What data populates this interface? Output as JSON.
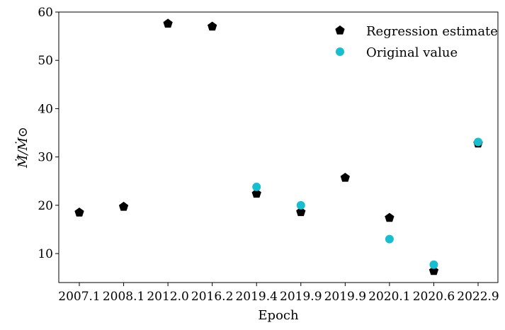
{
  "chart_data": {
    "type": "scatter",
    "categories": [
      "2007.1",
      "2008.1",
      "2012.0",
      "2016.2",
      "2019.4",
      "2019.9",
      "2019.9",
      "2020.1",
      "2020.6",
      "2022.9"
    ],
    "series": [
      {
        "name": "Regression estimate",
        "marker": "pentagon",
        "color": "#000000",
        "values": [
          18.5,
          19.7,
          57.6,
          57.0,
          22.4,
          18.6,
          25.7,
          17.4,
          6.4,
          32.8
        ]
      },
      {
        "name": "Original value",
        "marker": "circle",
        "color": "#17becf",
        "values": [
          null,
          null,
          null,
          null,
          23.8,
          20.0,
          null,
          13.0,
          7.7,
          33.1
        ]
      }
    ],
    "xlabel": "Epoch",
    "ylabel": "Ṁ̂/Ṁ⊙",
    "ylim": [
      4,
      60
    ],
    "yticks": [
      10,
      20,
      30,
      40,
      50,
      60
    ],
    "grid": false,
    "legend_position": "top-right"
  }
}
